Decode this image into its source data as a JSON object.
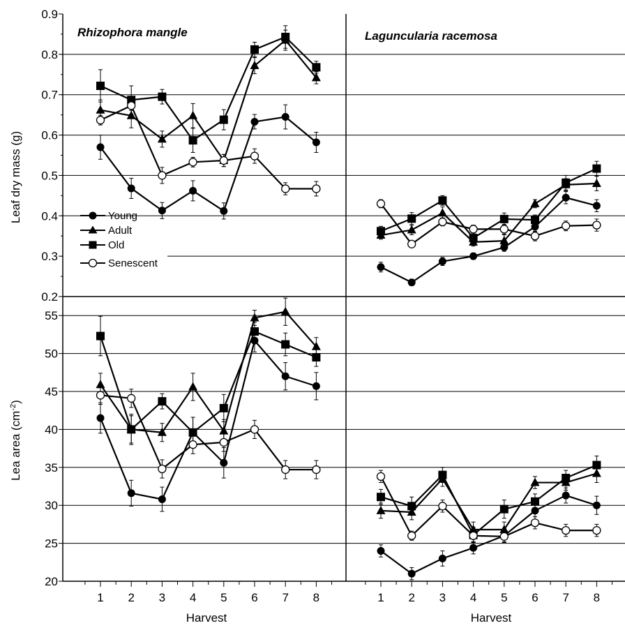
{
  "figure": {
    "y_axis_title_top": "Leaf dry mass (g)",
    "y_axis_title_bottom": "Lea area (cm",
    "y_axis_title_bottom_sup": "-2",
    "y_axis_title_bottom_close": ")",
    "x_axis_title": "Harvest",
    "panel_titles": [
      "Rhizophora mangle",
      "Laguncularia racemosa"
    ],
    "legend": [
      "Young",
      "Adult",
      "Old",
      "Senescent"
    ],
    "x_ticks": [
      "1",
      "2",
      "3",
      "4",
      "5",
      "6",
      "7",
      "8"
    ],
    "y_ticks_top": [
      "0.2",
      "0.3",
      "0.4",
      "0.5",
      "0.6",
      "0.7",
      "0.8",
      "0.9"
    ],
    "y_ticks_bottom": [
      "20",
      "25",
      "30",
      "35",
      "40",
      "45",
      "50",
      "55"
    ]
  },
  "chart_data": [
    {
      "type": "line",
      "title": "Rhizophora mangle",
      "xlabel": "",
      "ylabel": "Leaf dry mass (g)",
      "x": [
        1,
        2,
        3,
        4,
        5,
        6,
        7,
        8
      ],
      "ylim": [
        0.2,
        0.9
      ],
      "grid": true,
      "legend_position": "bottom-left",
      "series": [
        {
          "name": "Young",
          "marker": "filled-circle",
          "values": [
            0.57,
            0.468,
            0.413,
            0.462,
            0.412,
            0.633,
            0.645,
            0.582
          ],
          "errors": [
            0.03,
            0.025,
            0.02,
            0.025,
            0.02,
            0.018,
            0.03,
            0.025
          ]
        },
        {
          "name": "Adult",
          "marker": "filled-triangle",
          "values": [
            0.662,
            0.648,
            0.59,
            0.648,
            0.537,
            0.772,
            0.835,
            0.742
          ],
          "errors": [
            0.025,
            0.03,
            0.02,
            0.03,
            0.015,
            0.02,
            0.025,
            0.015
          ]
        },
        {
          "name": "Old",
          "marker": "filled-square",
          "values": [
            0.722,
            0.687,
            0.695,
            0.587,
            0.638,
            0.812,
            0.843,
            0.768
          ],
          "errors": [
            0.04,
            0.035,
            0.018,
            0.03,
            0.025,
            0.018,
            0.028,
            0.015
          ]
        },
        {
          "name": "Senescent",
          "marker": "open-circle",
          "values": [
            0.637,
            0.673,
            0.5,
            0.533,
            0.537,
            0.548,
            0.467,
            0.467
          ],
          "errors": [
            0.012,
            0.012,
            0.02,
            0.012,
            0.015,
            0.018,
            0.015,
            0.018
          ]
        }
      ]
    },
    {
      "type": "line",
      "title": "Laguncularia racemosa",
      "xlabel": "",
      "ylabel": "",
      "x": [
        1,
        2,
        3,
        4,
        5,
        6,
        7,
        8
      ],
      "ylim": [
        0.2,
        0.9
      ],
      "grid": true,
      "series": [
        {
          "name": "Young",
          "marker": "filled-circle",
          "values": [
            0.273,
            0.235,
            0.287,
            0.3,
            0.322,
            0.373,
            0.445,
            0.425
          ],
          "errors": [
            0.012,
            0.008,
            0.01,
            0.008,
            0.01,
            0.012,
            0.015,
            0.015
          ]
        },
        {
          "name": "Adult",
          "marker": "filled-triangle",
          "values": [
            0.352,
            0.365,
            0.407,
            0.335,
            0.338,
            0.43,
            0.477,
            0.48
          ],
          "errors": [
            0.01,
            0.012,
            0.015,
            0.01,
            0.015,
            0.01,
            0.015,
            0.018
          ]
        },
        {
          "name": "Old",
          "marker": "filled-square",
          "values": [
            0.362,
            0.393,
            0.438,
            0.345,
            0.392,
            0.39,
            0.482,
            0.517
          ],
          "errors": [
            0.012,
            0.015,
            0.012,
            0.012,
            0.015,
            0.012,
            0.018,
            0.018
          ]
        },
        {
          "name": "Senescent",
          "marker": "open-circle",
          "values": [
            0.43,
            0.33,
            0.385,
            0.367,
            0.367,
            0.35,
            0.375,
            0.377
          ],
          "errors": [
            0.01,
            0.008,
            0.01,
            0.01,
            0.012,
            0.012,
            0.012,
            0.015
          ]
        }
      ]
    },
    {
      "type": "line",
      "title": "",
      "xlabel": "Harvest",
      "ylabel": "Lea area (cm-2)",
      "x": [
        1,
        2,
        3,
        4,
        5,
        6,
        7,
        8
      ],
      "ylim": [
        20,
        57.5
      ],
      "grid": true,
      "series": [
        {
          "name": "Young",
          "marker": "filled-circle",
          "values": [
            41.5,
            31.6,
            30.8,
            39.6,
            35.6,
            51.7,
            47.0,
            45.7
          ],
          "errors": [
            2.0,
            1.7,
            1.6,
            2.0,
            2.0,
            1.5,
            1.8,
            1.8
          ]
        },
        {
          "name": "Adult",
          "marker": "filled-triangle",
          "values": [
            45.9,
            40.0,
            39.6,
            45.6,
            39.8,
            54.7,
            55.5,
            50.9
          ],
          "errors": [
            1.5,
            1.8,
            1.2,
            1.8,
            1.5,
            1.0,
            1.8,
            1.2
          ]
        },
        {
          "name": "Old",
          "marker": "filled-square",
          "values": [
            52.3,
            40.0,
            43.7,
            39.6,
            42.8,
            52.9,
            51.2,
            49.5
          ],
          "errors": [
            2.6,
            2.0,
            1.0,
            2.0,
            1.8,
            1.2,
            1.5,
            1.2
          ]
        },
        {
          "name": "Senescent",
          "marker": "open-circle",
          "values": [
            44.5,
            44.1,
            34.8,
            38.0,
            38.3,
            40.0,
            34.7,
            34.7
          ],
          "errors": [
            1.2,
            1.2,
            1.2,
            1.2,
            1.2,
            1.2,
            1.2,
            1.2
          ]
        }
      ]
    },
    {
      "type": "line",
      "title": "",
      "xlabel": "Harvest",
      "ylabel": "",
      "x": [
        1,
        2,
        3,
        4,
        5,
        6,
        7,
        8
      ],
      "ylim": [
        20,
        57.5
      ],
      "grid": true,
      "series": [
        {
          "name": "Young",
          "marker": "filled-circle",
          "values": [
            24.0,
            21.0,
            23.0,
            24.4,
            26.0,
            29.3,
            31.3,
            30.0
          ],
          "errors": [
            0.8,
            0.8,
            1.0,
            0.8,
            0.8,
            0.8,
            1.0,
            1.2
          ]
        },
        {
          "name": "Adult",
          "marker": "filled-triangle",
          "values": [
            29.3,
            29.1,
            33.5,
            26.8,
            26.8,
            33.0,
            33.0,
            34.2
          ],
          "errors": [
            1.0,
            1.0,
            1.0,
            1.0,
            1.0,
            0.8,
            1.0,
            1.2
          ]
        },
        {
          "name": "Old",
          "marker": "filled-square",
          "values": [
            31.1,
            29.9,
            34.0,
            26.1,
            29.5,
            30.5,
            33.6,
            35.3
          ],
          "errors": [
            1.0,
            1.2,
            1.0,
            1.0,
            1.2,
            1.0,
            1.0,
            1.2
          ]
        },
        {
          "name": "Senescent",
          "marker": "open-circle",
          "values": [
            33.8,
            26.0,
            29.9,
            26.0,
            25.9,
            27.7,
            26.7,
            26.7
          ],
          "errors": [
            0.8,
            0.6,
            0.8,
            0.8,
            0.8,
            0.8,
            0.8,
            0.8
          ]
        }
      ]
    }
  ]
}
